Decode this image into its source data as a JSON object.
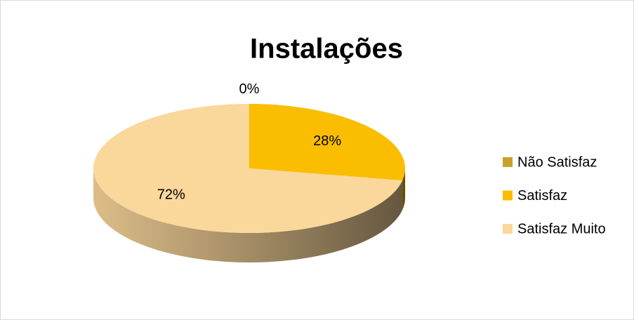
{
  "chart_data": {
    "type": "pie3d",
    "title": "Instalações",
    "categories": [
      "Não Satisfaz",
      "Satisfaz",
      "Satisfaz Muito"
    ],
    "values": [
      0,
      28,
      72
    ],
    "value_labels": [
      "0%",
      "28%",
      "72%"
    ],
    "colors": [
      "#c9a22a",
      "#fbbd00",
      "#fad79b"
    ],
    "legend": "right"
  }
}
